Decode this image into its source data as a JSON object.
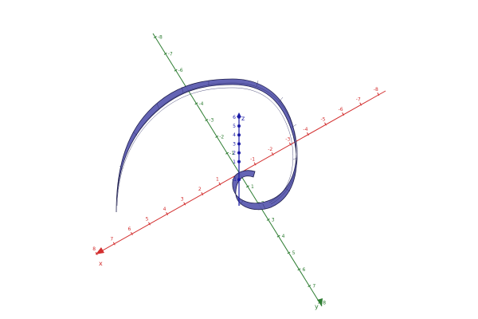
{
  "view": {
    "background": "#ffffff"
  },
  "axes": {
    "x": {
      "label": "x",
      "color": "#d32f2f",
      "tick_labels": [
        "-8",
        "-7",
        "-6",
        "-5",
        "-4",
        "-3",
        "-2",
        "-1",
        "1",
        "2",
        "3",
        "4",
        "5",
        "6",
        "7",
        "8"
      ]
    },
    "y": {
      "label": "y",
      "color": "#2e7d32",
      "tick_labels": [
        "-8",
        "-7",
        "-6",
        "-5",
        "-4",
        "-3",
        "-2",
        "-1",
        "1",
        "2",
        "3",
        "4",
        "5",
        "6",
        "7",
        "8"
      ]
    },
    "z": {
      "label": "z",
      "color": "#1a1aa6",
      "tick_labels": [
        "-1",
        "1",
        "2",
        "3",
        "4",
        "5",
        "6"
      ]
    }
  },
  "surface": {
    "name": "spiral-ribbon",
    "fill_color": "#5c5cb0",
    "edge_color": "#1f1f4d",
    "type": "spiral ribbon"
  }
}
